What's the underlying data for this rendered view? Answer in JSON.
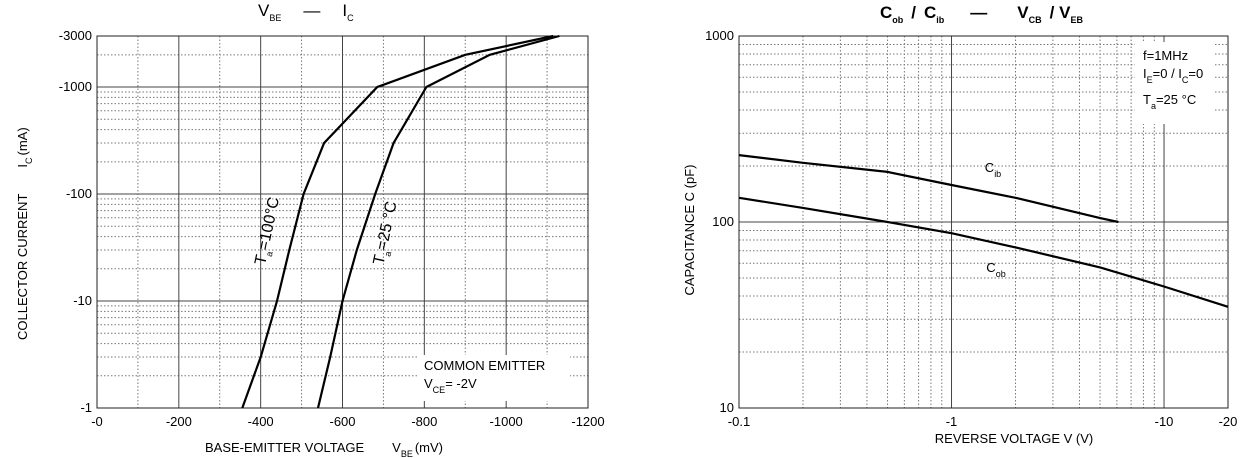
{
  "chart_data": [
    {
      "type": "line",
      "title": [
        {
          "text": "V",
          "sub": "BE"
        },
        {
          "text": "—"
        },
        {
          "text": "I",
          "sub": "C"
        }
      ],
      "xlabel": [
        {
          "text": "BASE-EMITTER VOLTAGE"
        },
        {
          "text": "V",
          "sub": "BE"
        },
        {
          "text": "(mV)"
        }
      ],
      "ylabel": [
        {
          "text": "COLLECTOR CURRENT"
        },
        {
          "text": "I",
          "sub": "C"
        },
        {
          "text": "(mA)"
        }
      ],
      "xscale": "linear",
      "yscale": "log",
      "grid": true,
      "xlim": [
        0,
        -1200
      ],
      "xticks": [
        {
          "value": 0,
          "label": "-0"
        },
        -200,
        -400,
        -600,
        -800,
        -1000,
        -1200
      ],
      "ylim": [
        -1,
        -3000
      ],
      "yticks": [
        -1,
        -10,
        -100,
        -1000,
        -3000
      ],
      "series": [
        {
          "name": [
            {
              "text": "T",
              "sub": "a"
            },
            {
              "text": "=100°C"
            }
          ],
          "color": "#000000",
          "x": [
            -355,
            -400,
            -440,
            -470,
            -505,
            -555,
            -685,
            -900,
            -1115
          ],
          "values": [
            -1,
            -3,
            -10,
            -30,
            -100,
            -300,
            -1000,
            -2000,
            -3000
          ]
        },
        {
          "name": [
            {
              "text": "T",
              "sub": "a"
            },
            {
              "text": "=25 °C"
            }
          ],
          "color": "#000000",
          "x": [
            -540,
            -570,
            -600,
            -635,
            -680,
            -725,
            -805,
            -960,
            -1130
          ],
          "values": [
            -1,
            -3,
            -10,
            -30,
            -100,
            -300,
            -1000,
            -2000,
            -3000
          ]
        }
      ],
      "annotation": [
        [
          {
            "text": "COMMON EMITTER"
          }
        ],
        [
          {
            "text": "V",
            "sub": "CE"
          },
          {
            "text": "= -2V"
          }
        ]
      ]
    },
    {
      "type": "line",
      "title": [
        {
          "text": "C",
          "sub": "ob"
        },
        {
          "text": "/"
        },
        {
          "text": "C",
          "sub": "ib"
        },
        {
          "text": "—"
        },
        {
          "text": "V",
          "sub": "CB"
        },
        {
          "text": "/ V",
          "sub": "EB"
        }
      ],
      "xlabel": [
        {
          "text": "REVERSE VOLTAGE V (V)"
        }
      ],
      "ylabel": [
        {
          "text": "CAPACITANCE C (pF)"
        }
      ],
      "xscale": "log",
      "yscale": "log",
      "grid": true,
      "xlim": [
        -0.1,
        -20
      ],
      "xticks": [
        -0.1,
        -1,
        -10,
        -20
      ],
      "ylim": [
        10,
        1000
      ],
      "yticks": [
        10,
        100,
        1000
      ],
      "series": [
        {
          "name": [
            {
              "text": "C",
              "sub": "ib"
            }
          ],
          "color": "#000000",
          "x": [
            -0.1,
            -0.2,
            -0.5,
            -1,
            -2,
            -5,
            -6.1
          ],
          "values": [
            229,
            208,
            186,
            158,
            135,
            105,
            100
          ]
        },
        {
          "name": [
            {
              "text": "C",
              "sub": "ob"
            }
          ],
          "color": "#000000",
          "x": [
            -0.1,
            -0.2,
            -0.5,
            -1,
            -2,
            -5,
            -10,
            -20
          ],
          "values": [
            135,
            119,
            100,
            87,
            73,
            57,
            45,
            35
          ]
        }
      ],
      "annotation": [
        [
          {
            "text": "f=1MHz"
          }
        ],
        [
          {
            "text": "I",
            "sub": "E"
          },
          {
            "text": "=0 / I",
            "sub": "C"
          },
          {
            "text": "=0"
          }
        ],
        [
          {
            "text": "T",
            "sub": "a"
          },
          {
            "text": "=25 °C"
          }
        ]
      ]
    }
  ]
}
